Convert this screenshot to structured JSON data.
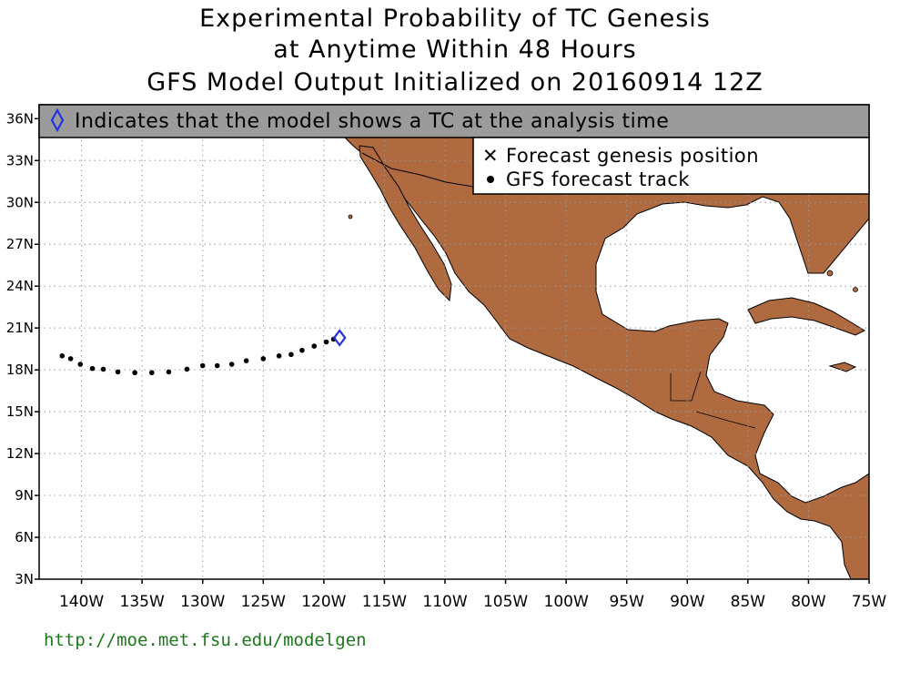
{
  "header": {
    "line1": "Experimental Probability of TC Genesis",
    "line2": "at Anytime Within 48 Hours",
    "line3": "GFS Model Output Initialized on 20160914 12Z"
  },
  "banner": {
    "text": "Indicates that the model shows a TC at the analysis time",
    "icon": "diamond-icon"
  },
  "legend": {
    "genesis_label": "Forecast genesis position",
    "track_label": "GFS forecast track",
    "genesis_icon": "x-icon",
    "track_icon": "dot-icon"
  },
  "axes": {
    "lat_labels": [
      "36N",
      "33N",
      "30N",
      "27N",
      "24N",
      "21N",
      "18N",
      "15N",
      "12N",
      "9N",
      "6N",
      "3N"
    ],
    "lat_values": [
      36,
      33,
      30,
      27,
      24,
      21,
      18,
      15,
      12,
      9,
      6,
      3
    ],
    "lon_labels": [
      "140W",
      "135W",
      "130W",
      "125W",
      "120W",
      "115W",
      "110W",
      "105W",
      "100W",
      "95W",
      "90W",
      "85W",
      "80W",
      "75W"
    ],
    "lon_values": [
      -140,
      -135,
      -130,
      -125,
      -120,
      -115,
      -110,
      -105,
      -100,
      -95,
      -90,
      -85,
      -80,
      -75
    ],
    "lon_range": [
      -143.5,
      -75
    ],
    "lat_range": [
      3,
      37
    ]
  },
  "colors": {
    "land": "#b06a40",
    "ocean": "#ffffff",
    "banner": "#9b9b9b",
    "diamond": "#2233dd",
    "url": "#1a7a1a"
  },
  "analysis_position": {
    "lon": -118.7,
    "lat": 20.3
  },
  "track": [
    {
      "lon": -141.6,
      "lat": 19.0
    },
    {
      "lon": -140.9,
      "lat": 18.8
    },
    {
      "lon": -140.1,
      "lat": 18.4
    },
    {
      "lon": -139.1,
      "lat": 18.1
    },
    {
      "lon": -138.2,
      "lat": 18.05
    },
    {
      "lon": -137.0,
      "lat": 17.85
    },
    {
      "lon": -135.6,
      "lat": 17.8
    },
    {
      "lon": -134.2,
      "lat": 17.8
    },
    {
      "lon": -132.8,
      "lat": 17.85
    },
    {
      "lon": -131.3,
      "lat": 18.05
    },
    {
      "lon": -130.0,
      "lat": 18.3
    },
    {
      "lon": -128.8,
      "lat": 18.3
    },
    {
      "lon": -127.6,
      "lat": 18.4
    },
    {
      "lon": -126.4,
      "lat": 18.65
    },
    {
      "lon": -125.0,
      "lat": 18.8
    },
    {
      "lon": -123.7,
      "lat": 19.0
    },
    {
      "lon": -122.7,
      "lat": 19.1
    },
    {
      "lon": -121.8,
      "lat": 19.4
    },
    {
      "lon": -120.8,
      "lat": 19.7
    },
    {
      "lon": -119.8,
      "lat": 20.0
    },
    {
      "lon": -119.2,
      "lat": 20.2
    }
  ],
  "footer": {
    "url": "http://moe.met.fsu.edu/modelgen"
  }
}
